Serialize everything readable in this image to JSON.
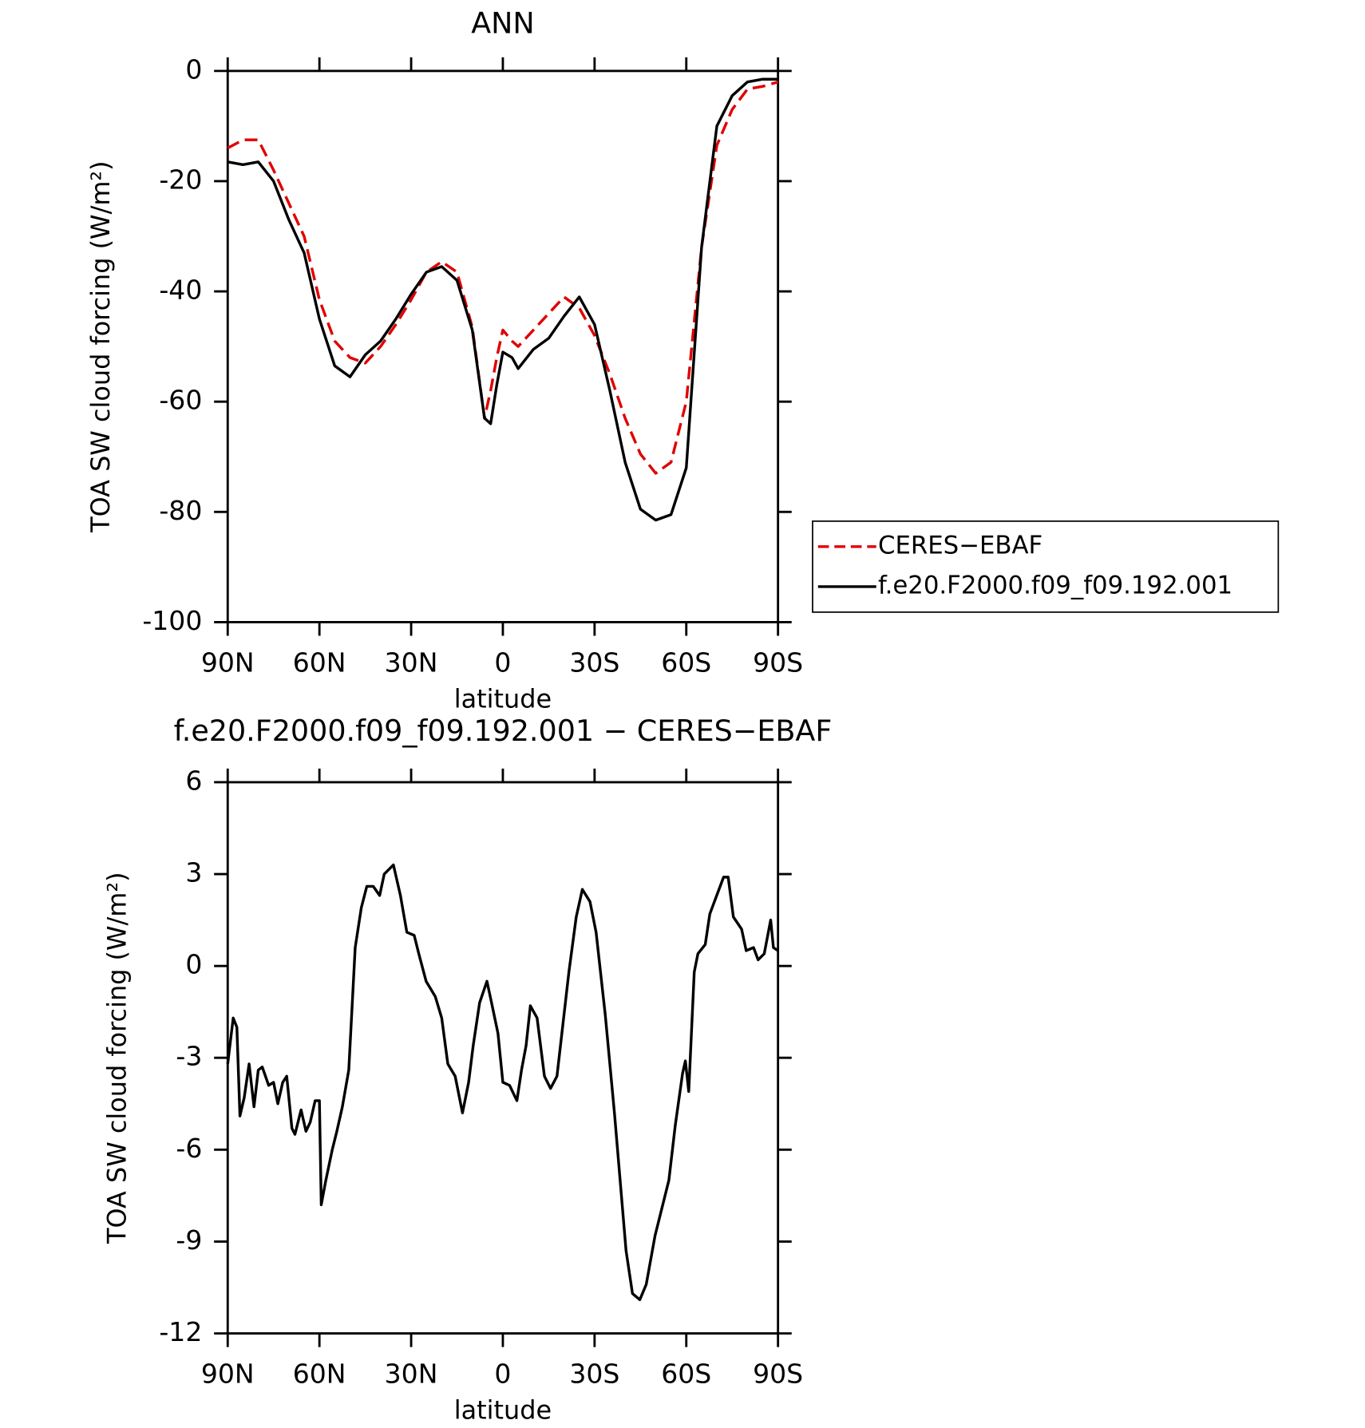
{
  "chart_data": [
    {
      "type": "line",
      "title": "ANN",
      "xlabel": "latitude",
      "ylabel": "TOA SW cloud forcing (W/m²)",
      "x": [
        90,
        85,
        80,
        75,
        70,
        65,
        60,
        55,
        50,
        45,
        40,
        35,
        30,
        25,
        20,
        15,
        10,
        6,
        4,
        2,
        0,
        -3,
        -5,
        -10,
        -15,
        -20,
        -25,
        -30,
        -35,
        -40,
        -45,
        -50,
        -55,
        -60,
        -65,
        -70,
        -75,
        -80,
        -85,
        -90
      ],
      "series": [
        {
          "name": "CERES−EBAF",
          "color": "#e00000",
          "line_style": "dashed",
          "values": [
            -14,
            -12.5,
            -12.5,
            -18,
            -24,
            -30,
            -41.5,
            -49,
            -52,
            -53,
            -50,
            -46,
            -41.5,
            -36.5,
            -34.6,
            -36.5,
            -46.5,
            -63,
            -58,
            -52,
            -47,
            -49,
            -50,
            -47,
            -44,
            -41,
            -43,
            -48,
            -55,
            -63,
            -69.5,
            -73,
            -71,
            -60,
            -32,
            -13.5,
            -7,
            -3.3,
            -2.8,
            -2
          ]
        },
        {
          "name": "f.e20.F2000.f09_f09.192.001",
          "color": "#000000",
          "line_style": "solid",
          "values": [
            -16.5,
            -17,
            -16.5,
            -20,
            -27,
            -33,
            -45,
            -53.5,
            -55.5,
            -51.5,
            -49,
            -45,
            -40.5,
            -36.5,
            -35.5,
            -38,
            -47,
            -63,
            -64,
            -57,
            -51,
            -52,
            -54,
            -50.5,
            -48.5,
            -44.5,
            -41,
            -46,
            -58,
            -71,
            -79.5,
            -81.5,
            -80.5,
            -72,
            -32,
            -10,
            -4.5,
            -2,
            -1.5,
            -1.5
          ]
        }
      ],
      "xlim": [
        90,
        -90
      ],
      "xticks": [
        {
          "value": 90,
          "label": "90N"
        },
        {
          "value": 60,
          "label": "60N"
        },
        {
          "value": 30,
          "label": "30N"
        },
        0,
        {
          "value": -30,
          "label": "30S"
        },
        {
          "value": -60,
          "label": "60S"
        },
        {
          "value": -90,
          "label": "90S"
        }
      ],
      "ylim": [
        -100,
        0
      ],
      "yticks": [
        -100,
        -80,
        -60,
        -40,
        -20,
        0
      ],
      "legend": "right"
    },
    {
      "type": "line",
      "title": "f.e20.F2000.f09_f09.192.001 − CERES−EBAF",
      "xlabel": "latitude",
      "ylabel": "TOA SW cloud forcing (W/m²)",
      "x": [
        90,
        88.2,
        87,
        86,
        84.6,
        83,
        81.4,
        80,
        78.7,
        76.6,
        75,
        73.6,
        72,
        70.7,
        69,
        68,
        66,
        64.4,
        63,
        61.4,
        60,
        59.4,
        57.9,
        55.8,
        54.3,
        52.5,
        50.4,
        48.3,
        46.3,
        44.5,
        42.4,
        40.3,
        38.8,
        35.8,
        33.5,
        31.4,
        29,
        27.5,
        25.1,
        22.1,
        20,
        18,
        15.6,
        13.2,
        11.2,
        9.7,
        7.6,
        5.2,
        3.7,
        1.6,
        0,
        -2.2,
        -4.6,
        -6.1,
        -7.6,
        -9,
        -11.2,
        -13.6,
        -15.6,
        -17.7,
        -21.6,
        -24,
        -26,
        -28.5,
        -30.5,
        -33.5,
        -36.5,
        -40.3,
        -42.4,
        -44.8,
        -46.9,
        -49.8,
        -54.3,
        -56.4,
        -58.8,
        -59.7,
        -60.8,
        -62.6,
        -63.8,
        -66.2,
        -67.7,
        -69.2,
        -72.2,
        -73.7,
        -75.4,
        -78.1,
        -79.6,
        -82,
        -83.5,
        -85.5,
        -87.6,
        -88.5,
        -90
      ],
      "values": [
        -3.2,
        -1.7,
        -2,
        -4.9,
        -4.3,
        -3.2,
        -4.6,
        -3.4,
        -3.3,
        -3.9,
        -3.8,
        -4.5,
        -3.8,
        -3.6,
        -5.3,
        -5.5,
        -4.7,
        -5.4,
        -5.1,
        -4.4,
        -4.4,
        -7.8,
        -7,
        -6,
        -5.4,
        -4.6,
        -3.4,
        0.6,
        1.9,
        2.6,
        2.6,
        2.3,
        3,
        3.3,
        2.3,
        1.1,
        1,
        0.4,
        -0.5,
        -1,
        -1.7,
        -3.2,
        -3.6,
        -4.8,
        -3.8,
        -2.6,
        -1.2,
        -0.5,
        -1.2,
        -2.2,
        -3.8,
        -3.9,
        -4.4,
        -3.4,
        -2.6,
        -1.3,
        -1.7,
        -3.6,
        -4,
        -3.6,
        -0.2,
        1.6,
        2.5,
        2.1,
        1.1,
        -1.6,
        -4.8,
        -9.3,
        -10.7,
        -10.9,
        -10.4,
        -8.8,
        -7,
        -5.2,
        -3.5,
        -3.1,
        -4.1,
        -0.2,
        0.4,
        0.7,
        1.7,
        2.1,
        2.9,
        2.9,
        1.6,
        1.2,
        0.5,
        0.6,
        0.2,
        0.4,
        1.5,
        0.6,
        0.5
      ],
      "color": "#000000",
      "xlim": [
        90,
        -90
      ],
      "xticks": [
        {
          "value": 90,
          "label": "90N"
        },
        {
          "value": 60,
          "label": "60N"
        },
        {
          "value": 30,
          "label": "30N"
        },
        0,
        {
          "value": -30,
          "label": "30S"
        },
        {
          "value": -60,
          "label": "60S"
        },
        {
          "value": -90,
          "label": "90S"
        }
      ],
      "ylim": [
        -12,
        6
      ],
      "yticks": [
        -12,
        -9,
        -6,
        -3,
        0,
        3,
        6
      ]
    }
  ]
}
